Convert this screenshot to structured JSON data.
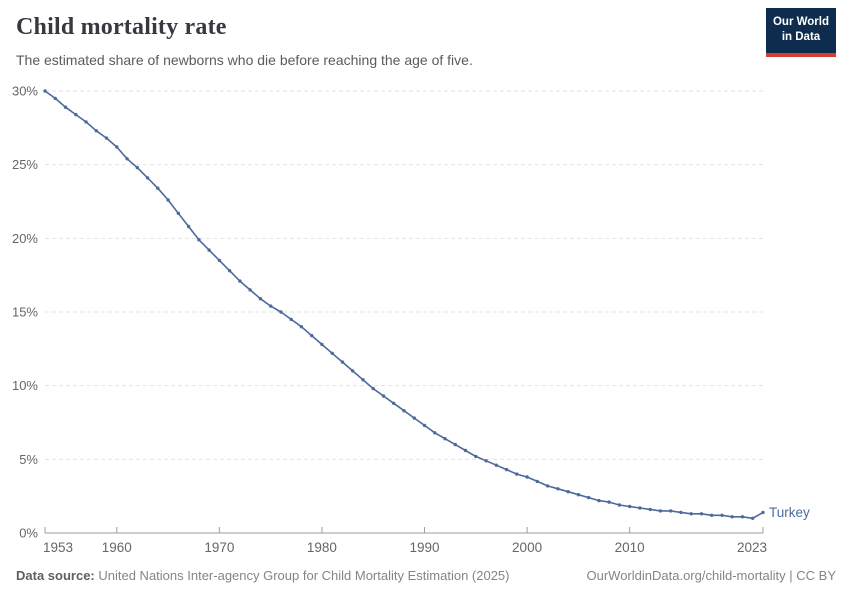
{
  "header": {
    "title": "Child mortality rate",
    "subtitle": "The estimated share of newborns who die before reaching the age of five.",
    "logo": {
      "line1": "Our World",
      "line2": "in Data"
    }
  },
  "footer": {
    "datasource_label": "Data source:",
    "datasource_text": " United Nations Inter-agency Group for Child Mortality Estimation (2025)",
    "link_text": "OurWorldinData.org/child-mortality | CC BY"
  },
  "colors": {
    "line": "#4c6a9c",
    "entity_label": "#4c6a9c",
    "gridline": "#e2e2e2",
    "axis": "#9e9e9e",
    "tick_label": "#666666",
    "logo_bg": "#0e2d4e",
    "logo_bar": "#d73c34"
  },
  "chart_data": {
    "type": "line",
    "title": "Child mortality rate",
    "subtitle": "The estimated share of newborns who die before reaching the age of five.",
    "xlabel": "",
    "ylabel": "",
    "xlim": [
      1953,
      2023
    ],
    "ylim": [
      0,
      30
    ],
    "x_ticks": [
      1953,
      1960,
      1970,
      1980,
      1990,
      2000,
      2010,
      2023
    ],
    "y_ticks": [
      0,
      5,
      10,
      15,
      20,
      25,
      30
    ],
    "y_tick_suffix": "%",
    "grid": "horizontal-dashed",
    "legend_position": "end-of-line-label",
    "marker": "dot",
    "series": [
      {
        "name": "Turkey",
        "x": [
          1953,
          1954,
          1955,
          1956,
          1957,
          1958,
          1959,
          1960,
          1961,
          1962,
          1963,
          1964,
          1965,
          1966,
          1967,
          1968,
          1969,
          1970,
          1971,
          1972,
          1973,
          1974,
          1975,
          1976,
          1977,
          1978,
          1979,
          1980,
          1981,
          1982,
          1983,
          1984,
          1985,
          1986,
          1987,
          1988,
          1989,
          1990,
          1991,
          1992,
          1993,
          1994,
          1995,
          1996,
          1997,
          1998,
          1999,
          2000,
          2001,
          2002,
          2003,
          2004,
          2005,
          2006,
          2007,
          2008,
          2009,
          2010,
          2011,
          2012,
          2013,
          2014,
          2015,
          2016,
          2017,
          2018,
          2019,
          2020,
          2021,
          2022,
          2023
        ],
        "values": [
          30.0,
          29.5,
          28.9,
          28.4,
          27.9,
          27.3,
          26.8,
          26.2,
          25.4,
          24.8,
          24.1,
          23.4,
          22.6,
          21.7,
          20.8,
          19.9,
          19.2,
          18.5,
          17.8,
          17.1,
          16.5,
          15.9,
          15.4,
          15.0,
          14.5,
          14.0,
          13.4,
          12.8,
          12.2,
          11.6,
          11.0,
          10.4,
          9.8,
          9.3,
          8.8,
          8.3,
          7.8,
          7.3,
          6.8,
          6.4,
          6.0,
          5.6,
          5.2,
          4.9,
          4.6,
          4.3,
          4.0,
          3.8,
          3.5,
          3.2,
          3.0,
          2.8,
          2.6,
          2.4,
          2.2,
          2.1,
          1.9,
          1.8,
          1.7,
          1.6,
          1.5,
          1.5,
          1.4,
          1.3,
          1.3,
          1.2,
          1.2,
          1.1,
          1.1,
          1.0,
          1.4
        ]
      }
    ]
  }
}
